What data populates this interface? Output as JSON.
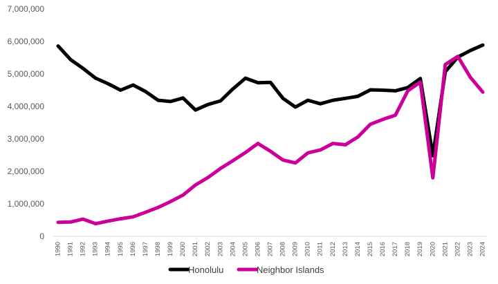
{
  "chart_data": {
    "type": "line",
    "title": "",
    "xlabel": "",
    "ylabel": "",
    "ylim": [
      0,
      7000000
    ],
    "y_ticks": [
      0,
      1000000,
      2000000,
      3000000,
      4000000,
      5000000,
      6000000,
      7000000
    ],
    "y_tick_labels": [
      "0",
      "1,000,000",
      "2,000,000",
      "3,000,000",
      "4,000,000",
      "5,000,000",
      "6,000,000",
      "7,000,000"
    ],
    "grid": false,
    "legend_position": "bottom-center",
    "categories": [
      "1990",
      "1991",
      "1992",
      "1993",
      "1994",
      "1995",
      "1996",
      "1997",
      "1998",
      "1999",
      "2000",
      "2001",
      "2002",
      "2003",
      "2004",
      "2005",
      "2006",
      "2007",
      "2008",
      "2009",
      "2010",
      "2011",
      "2012",
      "2013",
      "2014",
      "2015",
      "2016",
      "2017",
      "2018",
      "2019",
      "2020",
      "2021",
      "2022",
      "2023",
      "2024"
    ],
    "series": [
      {
        "name": "Honolulu",
        "color": "#000000",
        "values": [
          5860000,
          5440000,
          5170000,
          4870000,
          4700000,
          4500000,
          4660000,
          4460000,
          4190000,
          4150000,
          4260000,
          3890000,
          4060000,
          4170000,
          4540000,
          4870000,
          4730000,
          4740000,
          4250000,
          3980000,
          4190000,
          4080000,
          4190000,
          4250000,
          4310000,
          4510000,
          4500000,
          4480000,
          4580000,
          4860000,
          2480000,
          5070000,
          5520000,
          5720000,
          5890000
        ]
      },
      {
        "name": "Neighbor Islands",
        "color": "#cc0099",
        "values": [
          430000,
          440000,
          530000,
          390000,
          470000,
          540000,
          600000,
          740000,
          890000,
          1070000,
          1270000,
          1580000,
          1810000,
          2090000,
          2330000,
          2580000,
          2860000,
          2620000,
          2350000,
          2260000,
          2570000,
          2660000,
          2860000,
          2820000,
          3060000,
          3450000,
          3600000,
          3730000,
          4480000,
          4750000,
          1800000,
          5290000,
          5540000,
          4900000,
          4440000
        ]
      }
    ]
  }
}
